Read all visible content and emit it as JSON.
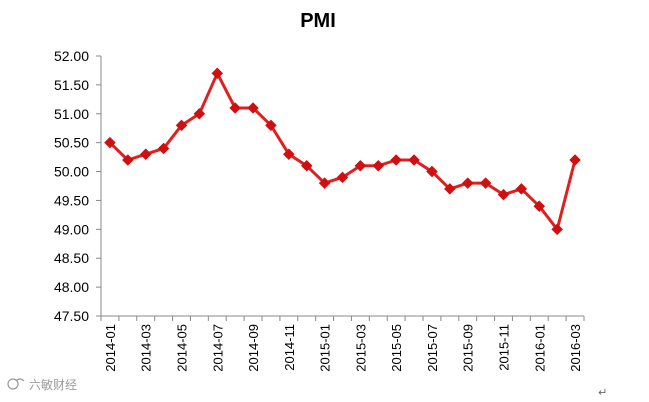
{
  "chart_data": {
    "type": "line",
    "title": "PMI",
    "xlabel": "",
    "ylabel": "",
    "categories": [
      "2014-01",
      "2014-02",
      "2014-03",
      "2014-04",
      "2014-05",
      "2014-06",
      "2014-07",
      "2014-08",
      "2014-09",
      "2014-10",
      "2014-11",
      "2014-12",
      "2015-01",
      "2015-02",
      "2015-03",
      "2015-04",
      "2015-05",
      "2015-06",
      "2015-07",
      "2015-08",
      "2015-09",
      "2015-10",
      "2015-11",
      "2015-12",
      "2016-01",
      "2016-02",
      "2016-03"
    ],
    "x_tick_labels": [
      "2014-01",
      "2014-03",
      "2014-05",
      "2014-07",
      "2014-09",
      "2014-11",
      "2015-01",
      "2015-03",
      "2015-05",
      "2015-07",
      "2015-09",
      "2015-11",
      "2016-01",
      "2016-03"
    ],
    "series": [
      {
        "color": "#e02020",
        "marker_color": "#d01010",
        "values": [
          50.5,
          50.2,
          50.3,
          50.4,
          50.8,
          51.0,
          51.7,
          51.1,
          51.1,
          50.8,
          50.3,
          50.1,
          49.8,
          49.9,
          50.1,
          50.1,
          50.2,
          50.2,
          50.0,
          49.7,
          49.8,
          49.8,
          49.6,
          49.7,
          49.4,
          49.0,
          50.2
        ]
      }
    ],
    "ylim": [
      47.5,
      52.0
    ],
    "y_ticks": [
      "47.50",
      "48.00",
      "48.50",
      "49.00",
      "49.50",
      "50.00",
      "50.50",
      "51.00",
      "51.50",
      "52.00"
    ],
    "grid": false,
    "legend": "none"
  },
  "watermark": {
    "text": "六敏财经"
  },
  "corner_mark": "↵"
}
